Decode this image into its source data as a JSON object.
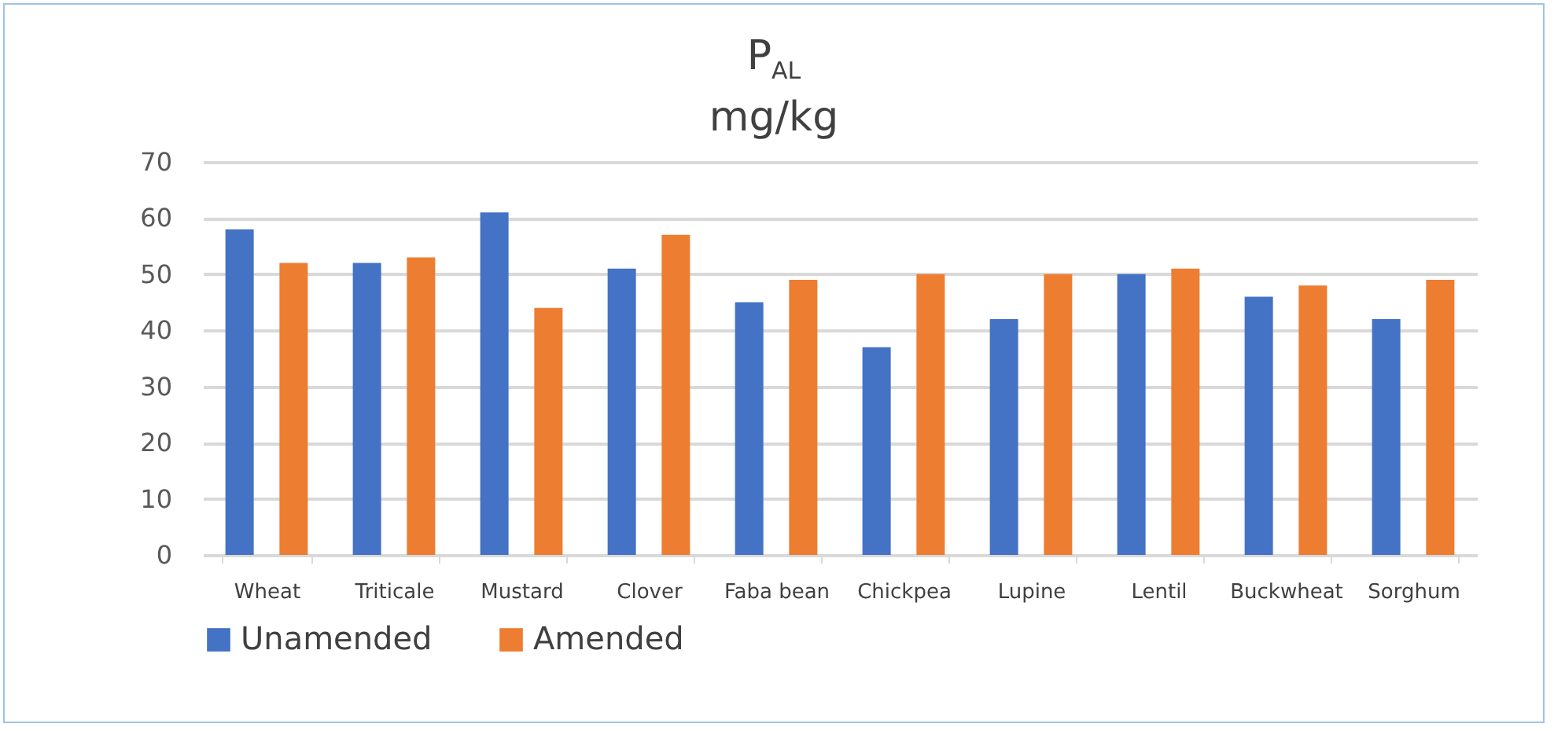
{
  "chart_data": {
    "type": "bar",
    "title": "P$_{AL}$",
    "subtitle": "mg/kg",
    "categories": [
      "Wheat",
      "Triticale",
      "Mustard",
      "Clover",
      "Faba bean",
      "Chickpea",
      "Lupine",
      "Lentil",
      "Buckwheat",
      "Sorghum"
    ],
    "series": [
      {
        "name": "Unamended",
        "color": "#4472c4",
        "values": [
          58,
          52,
          61,
          51,
          45,
          37,
          42,
          50,
          46,
          42
        ]
      },
      {
        "name": "Amended",
        "color": "#ed7d31",
        "values": [
          52,
          53,
          44,
          57,
          49,
          50,
          50,
          51,
          48,
          49
        ]
      }
    ],
    "ylim": [
      0,
      70
    ],
    "yticks": [
      0,
      10,
      20,
      30,
      40,
      50,
      60,
      70
    ],
    "grid": "y",
    "legend": "bottom"
  }
}
